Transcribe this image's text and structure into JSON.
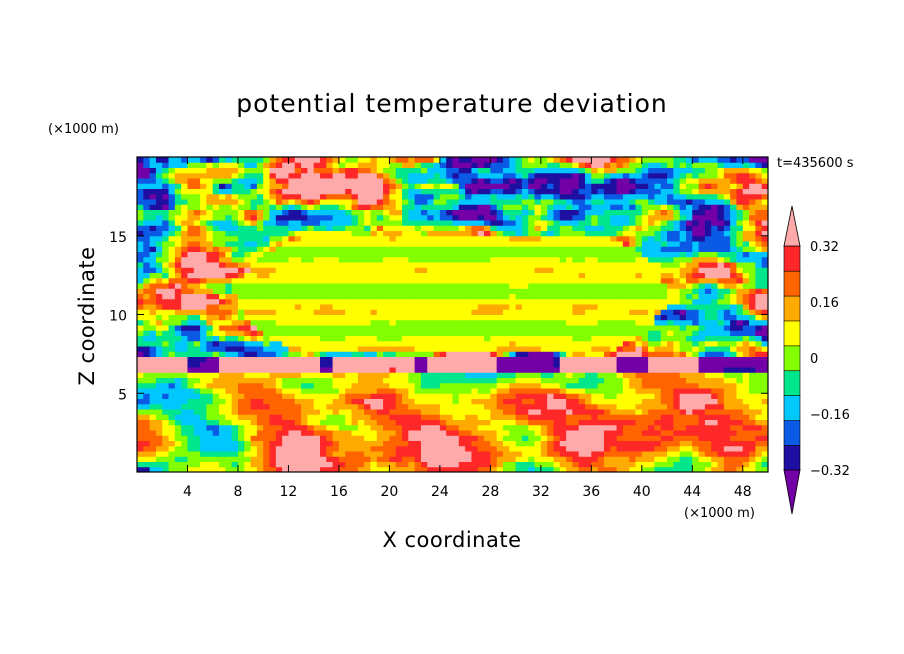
{
  "chart_data": {
    "type": "heatmap",
    "title": "potential temperature deviation",
    "time_label": "t=435600 s",
    "xlabel": "X coordinate",
    "ylabel": "Z coordinate",
    "x_unit": "(×1000 m)",
    "y_unit": "(×1000 m)",
    "xlim": [
      0,
      50
    ],
    "ylim": [
      0,
      20
    ],
    "x_ticks": [
      4,
      8,
      12,
      16,
      20,
      24,
      28,
      32,
      36,
      40,
      44,
      48
    ],
    "y_ticks": [
      5,
      10,
      15
    ],
    "x_tick_labels": [
      "4",
      "8",
      "12",
      "16",
      "20",
      "24",
      "28",
      "32",
      "36",
      "40",
      "44",
      "48"
    ],
    "y_tick_labels": [
      "5",
      "10",
      "15"
    ],
    "colorbar": {
      "levels": [
        -0.4,
        -0.32,
        -0.24,
        -0.16,
        -0.08,
        0,
        0.08,
        0.16,
        0.24,
        0.32,
        0.4
      ],
      "labeled_ticks": [
        0.32,
        0.16,
        0,
        -0.16,
        -0.32
      ],
      "labeled_tick_text": [
        "0.32",
        "0.16",
        "0",
        "−0.16",
        "−0.32"
      ],
      "colors": [
        "#7300a6",
        "#1e0fa0",
        "#0a5ae6",
        "#00c8ff",
        "#00e68c",
        "#82ff00",
        "#ffff00",
        "#ffaa00",
        "#ff6400",
        "#ff2828",
        "#ffaaaa"
      ],
      "extend": "both"
    }
  }
}
